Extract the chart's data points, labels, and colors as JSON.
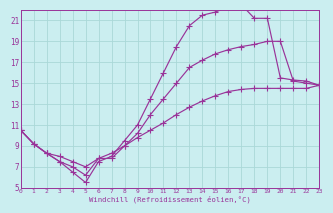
{
  "xlabel": "Windchill (Refroidissement éolien,°C)",
  "bg_color": "#cbeef0",
  "grid_color": "#aad8d8",
  "line_color": "#993399",
  "xmin": 0,
  "xmax": 23,
  "ymin": 5,
  "ymax": 22,
  "yticks": [
    5,
    7,
    9,
    11,
    13,
    15,
    17,
    19,
    21
  ],
  "xticks": [
    0,
    1,
    2,
    3,
    4,
    5,
    6,
    7,
    8,
    9,
    10,
    11,
    12,
    13,
    14,
    15,
    16,
    17,
    18,
    19,
    20,
    21,
    22,
    23
  ],
  "lines": [
    {
      "comment": "bottom diagonal line - nearly straight, gentle rise from left to right",
      "x": [
        0,
        1,
        2,
        3,
        4,
        5,
        6,
        7,
        8,
        9,
        10,
        11,
        12,
        13,
        14,
        15,
        16,
        17,
        18,
        19,
        20,
        21,
        22,
        23
      ],
      "y": [
        10.5,
        9.2,
        8.3,
        8.0,
        7.5,
        7.0,
        7.8,
        8.3,
        9.0,
        9.8,
        10.5,
        11.2,
        12.0,
        12.7,
        13.3,
        13.8,
        14.2,
        14.4,
        14.5,
        14.5,
        14.5,
        14.5,
        14.5,
        14.8
      ]
    },
    {
      "comment": "middle line - dips low then peaks around x=20 at ~19, drops to ~15",
      "x": [
        0,
        1,
        2,
        3,
        4,
        5,
        6,
        7,
        8,
        9,
        10,
        11,
        12,
        13,
        14,
        15,
        16,
        17,
        18,
        19,
        20,
        21,
        22,
        23
      ],
      "y": [
        10.5,
        9.2,
        8.3,
        7.5,
        7.0,
        6.2,
        7.8,
        7.8,
        9.0,
        10.2,
        12.0,
        13.5,
        15.0,
        16.5,
        17.2,
        17.8,
        18.2,
        18.5,
        18.7,
        19.0,
        19.0,
        15.2,
        15.0,
        14.8
      ]
    },
    {
      "comment": "top line - dips low then peaks high ~22.5 around x=16-17, sharp drop then level",
      "x": [
        0,
        1,
        2,
        3,
        4,
        5,
        6,
        7,
        8,
        9,
        10,
        11,
        12,
        13,
        14,
        15,
        16,
        17,
        18,
        19,
        20,
        21,
        22,
        23
      ],
      "y": [
        10.5,
        9.2,
        8.3,
        7.5,
        6.5,
        5.5,
        7.5,
        8.0,
        9.5,
        11.0,
        13.5,
        16.0,
        18.5,
        20.5,
        21.5,
        21.8,
        22.3,
        22.5,
        21.2,
        21.2,
        15.5,
        15.3,
        15.2,
        14.8
      ]
    }
  ]
}
